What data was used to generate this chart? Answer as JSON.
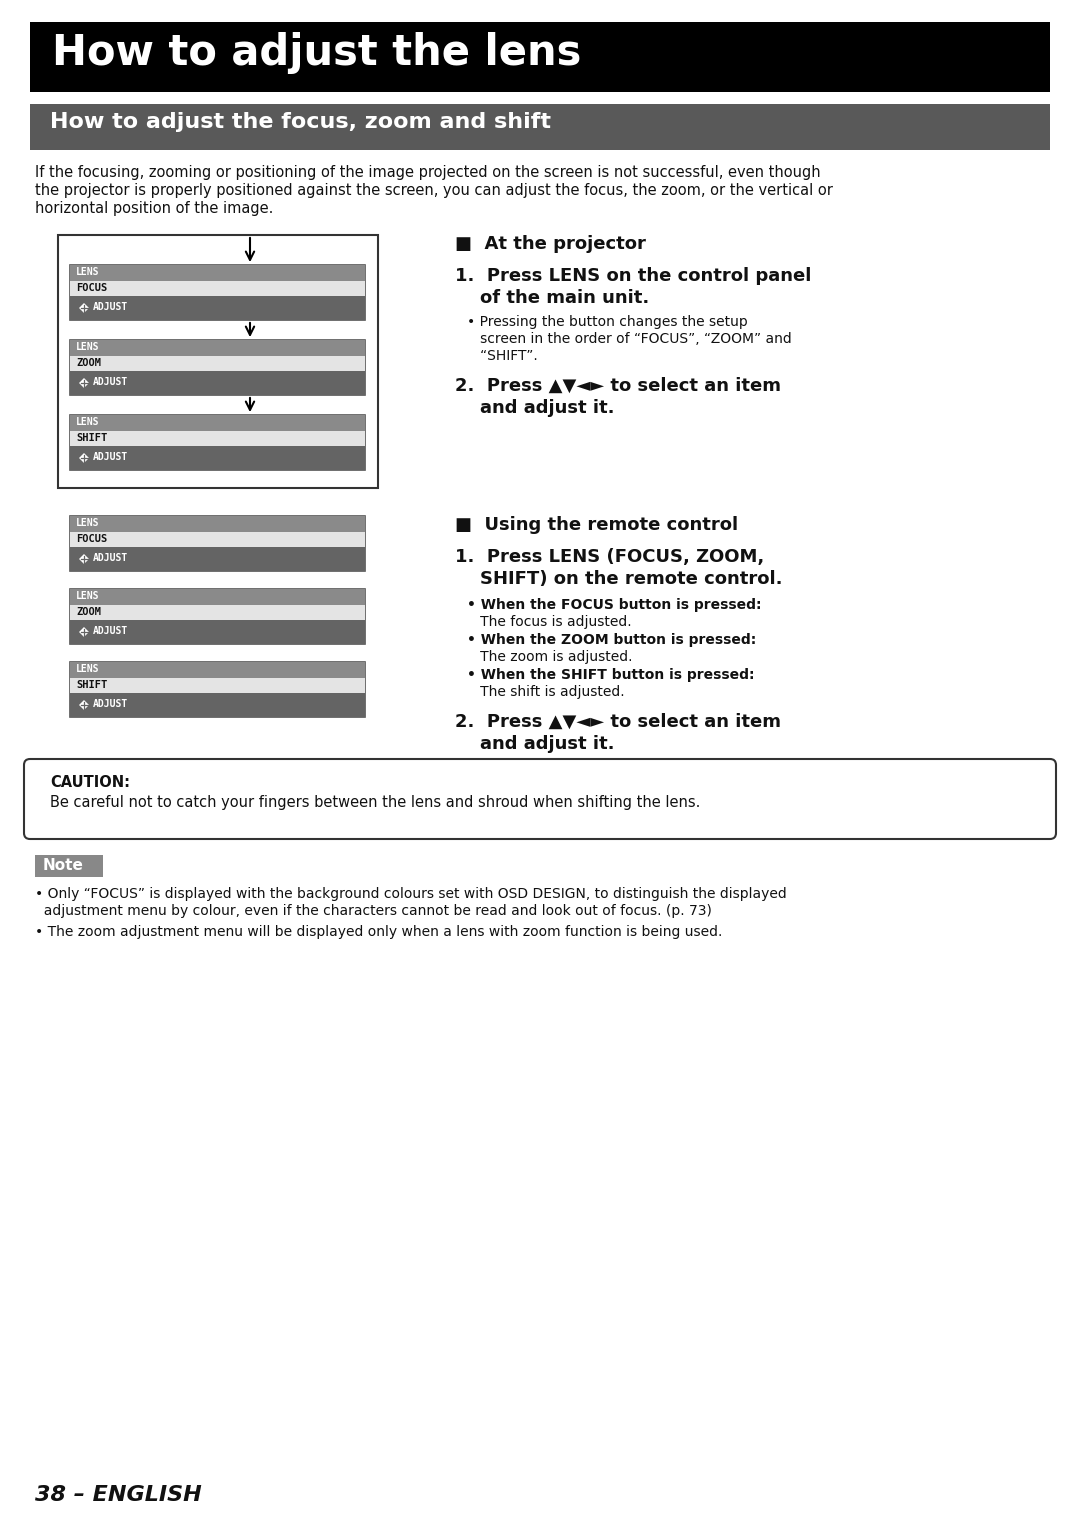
{
  "page_bg": "#ffffff",
  "main_title": "How to adjust the lens",
  "main_title_bg": "#000000",
  "main_title_color": "#ffffff",
  "sub_title": "How to adjust the focus, zoom and shift",
  "sub_title_bg": "#555555",
  "sub_title_color": "#ffffff",
  "intro_line1": "If the focusing, zooming or positioning of the image projected on the screen is not successful, even though",
  "intro_line2": "the projector is properly positioned against the screen, you can adjust the focus, the zoom, or the vertical or",
  "intro_line3": "horizontal position of the image.",
  "sec1_hdr": "■  At the projector",
  "s1_1a": "1.  Press LENS on the control panel",
  "s1_1b": "    of the main unit.",
  "s1_b1": "• Pressing the button changes the setup",
  "s1_b2": "   screen in the order of “FOCUS”, “ZOOM” and",
  "s1_b3": "   “SHIFT”.",
  "s1_2a": "2.  Press ▲▼◄► to select an item",
  "s1_2b": "    and adjust it.",
  "sec2_hdr": "■  Using the remote control",
  "s2_1a": "1.  Press LENS (FOCUS, ZOOM,",
  "s2_1b": "    SHIFT) on the remote control.",
  "s2_b1_bold": "• When the FOCUS button is pressed:",
  "s2_b1_text": "   The focus is adjusted.",
  "s2_b2_bold": "• When the ZOOM button is pressed:",
  "s2_b2_text": "   The zoom is adjusted.",
  "s2_b3_bold": "• When the SHIFT button is pressed:",
  "s2_b3_text": "   The shift is adjusted.",
  "s2_2a": "2.  Press ▲▼◄► to select an item",
  "s2_2b": "    and adjust it.",
  "caution_title": "CAUTION:",
  "caution_text": "Be careful not to catch your fingers between the lens and shroud when shifting the lens.",
  "note_title": "Note",
  "note1a": "• Only “FOCUS” is displayed with the background colours set with OSD DESIGN, to distinguish the displayed",
  "note1b": "  adjustment menu by colour, even if the characters cannot be read and look out of focus. (p. 73)",
  "note2": "• The zoom adjustment menu will be displayed only when a lens with zoom function is being used.",
  "page_num": "38 – ENGLISH"
}
